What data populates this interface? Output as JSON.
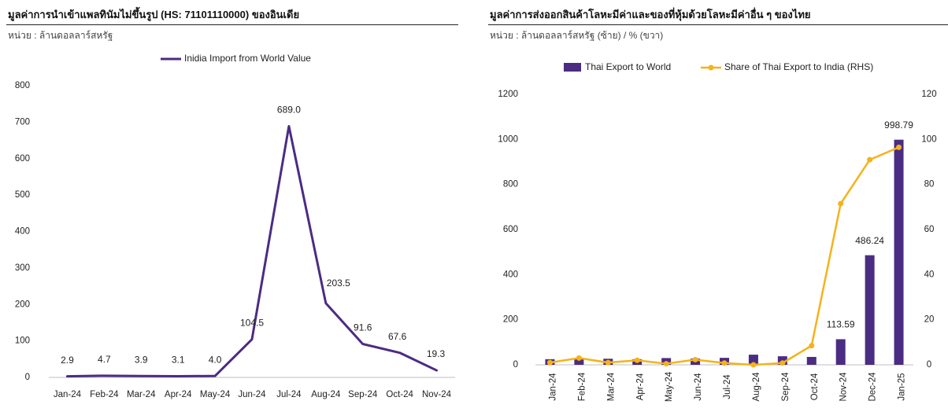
{
  "left": {
    "title": "มูลค่าการนำเข้าแพลทินัมไม่ขึ้นรูป  (HS: 71101110000) ของอินเดีย",
    "unit": "หน่วย : ล้านดอลลาร์สหรัฐ"
  },
  "right": {
    "title": "มูลค่าการส่งออกสินค้าโลหะมีค่าและของที่หุ้มด้วยโลหะมีค่าอื่น  ๆ ของไทย",
    "unit": "หน่วย : ล้านดอลลาร์สหรัฐ (ซ้าย) / % (ขวา)"
  },
  "colors": {
    "purple": "#4b2c83",
    "orange": "#f5b21a",
    "text": "#222222"
  },
  "chart_data": [
    {
      "type": "line",
      "title": "",
      "xlabel": "",
      "ylabel": "",
      "legend": "top-center",
      "grid": false,
      "ylim": [
        0,
        800
      ],
      "yticks": [
        0,
        100,
        200,
        300,
        400,
        500,
        600,
        700,
        800
      ],
      "categories": [
        "Jan-24",
        "Feb-24",
        "Mar-24",
        "Apr-24",
        "May-24",
        "Jun-24",
        "Jul-24",
        "Aug-24",
        "Sep-24",
        "Oct-24",
        "Nov-24"
      ],
      "series": [
        {
          "name": "Inidia Import from World Value",
          "values": [
            2.9,
            4.7,
            3.9,
            3.1,
            4.0,
            104.5,
            689.0,
            203.5,
            91.6,
            67.6,
            19.3
          ],
          "labels": [
            "2.9",
            "4.7",
            "3.9",
            "3.1",
            "4.0",
            "104.5",
            "689.0",
            "203.5",
            "91.6",
            "67.6",
            "19.3"
          ]
        }
      ]
    },
    {
      "type": "bar",
      "title": "",
      "xlabel": "",
      "ylabel": "",
      "legend": "top-center",
      "grid": false,
      "ylim": [
        0,
        1200
      ],
      "yticks": [
        0,
        200,
        400,
        600,
        800,
        1000,
        1200
      ],
      "y2lim": [
        0,
        120
      ],
      "y2ticks": [
        0,
        20,
        40,
        60,
        80,
        100,
        120
      ],
      "categories": [
        "Jan-24",
        "Feb-24",
        "Mar-24",
        "Apr-24",
        "May-24",
        "Jun-24",
        "Jul-24",
        "Aug-24",
        "Sep-24",
        "Oct-24",
        "Nov-24",
        "Dec-24",
        "Jan-25"
      ],
      "series": [
        {
          "name": "Thai Export to World",
          "type": "bar",
          "axis": "left",
          "values": [
            25,
            30,
            27,
            25,
            30,
            28,
            31,
            45,
            38,
            35,
            113.59,
            486.24,
            998.79
          ],
          "labels": [
            "",
            "",
            "",
            "",
            "",
            "",
            "",
            "",
            "",
            "",
            "113.59",
            "486.24",
            "998.79"
          ]
        },
        {
          "name": "Share of Thai Export to India (RHS)",
          "type": "line",
          "axis": "right",
          "values": [
            1.0,
            3.0,
            1.0,
            2.0,
            0.5,
            2.3,
            0.8,
            0.0,
            0.8,
            8.5,
            71.5,
            91.0,
            96.5
          ]
        }
      ]
    }
  ]
}
